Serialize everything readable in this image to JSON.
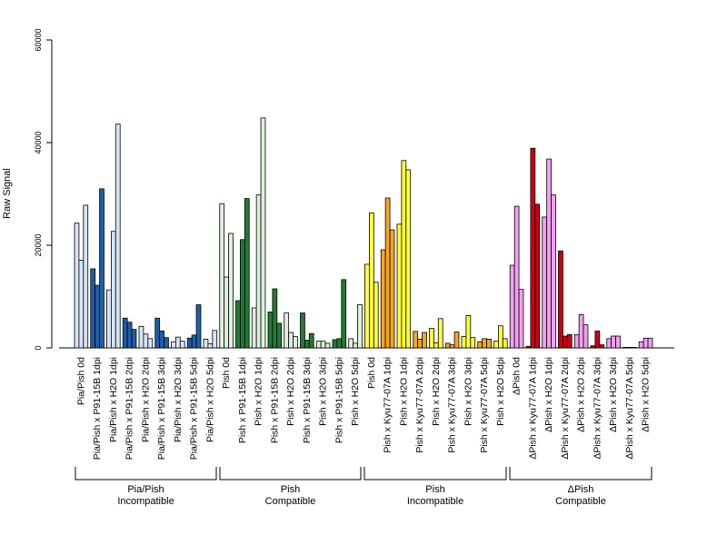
{
  "chart_data": {
    "type": "bar",
    "ylabel": "Raw Signal",
    "ylim": [
      0,
      60000
    ],
    "yticks": [
      0,
      20000,
      40000,
      60000
    ],
    "categories": [
      "Pia/Pish 0d",
      "Pia/Pish x P91-15B 1dpi",
      "Pia/Pish x H2O 1dpi",
      "Pia/Pish x P91-15B 2dpi",
      "Pia/Pish x H2O 2dpi",
      "Pia/Pish x P91-15B 3dpi",
      "Pia/Pish x H2O 3dpi",
      "Pia/Pish x P91-15B 5dpi",
      "Pia/Pish x H2O 5dpi",
      "Pish 0d",
      "Pish x P91-15B 1dpi",
      "Pish x H2O 1dpi",
      "Pish x P91-15B 2dpi",
      "Pish x H2O 2dpi",
      "Pish x P91-15B 3dpi",
      "Pish x H2O 3dpi",
      "Pish x P91-15B 5dpi",
      "Pish x H2O 5dpi",
      "Pish 0d",
      "Pish x Kyu77-07A 1dpi",
      "Pish x H2O 1dpi",
      "Pish x Kyu77-07A 2dpi",
      "Pish x H2O 2dpi",
      "Pish x Kyu77-07A 3dpi",
      "Pish x H2O 3dpi",
      "Pish x Kyu77-07A 5dpi",
      "Pish x H2O 5dpi",
      "ΔPish 0d",
      "ΔPish x Kyu77-07A 1dpi",
      "ΔPish x H2O 1dpi",
      "ΔPish x Kyu77-07A 2dpi",
      "ΔPish x H2O 2dpi",
      "ΔPish x Kyu77-07A 3dpi",
      "ΔPish x H2O 3dpi",
      "ΔPish x Kyu77-07A 5dpi",
      "ΔPish x H2O 5dpi"
    ],
    "replicate_values": [
      [
        24300,
        17100,
        27800
      ],
      [
        15400,
        12200,
        31000
      ],
      [
        11300,
        22700,
        43600
      ],
      [
        5800,
        5000,
        3600
      ],
      [
        4200,
        2700,
        1800
      ],
      [
        5800,
        3300,
        2000
      ],
      [
        1200,
        2100,
        1300
      ],
      [
        1900,
        2500,
        8400
      ],
      [
        1700,
        800,
        3400
      ],
      [
        28100,
        13800,
        22300
      ],
      [
        9200,
        21100,
        29100
      ],
      [
        7800,
        29800,
        44800
      ],
      [
        7000,
        11500,
        4800
      ],
      [
        6800,
        3000,
        2200
      ],
      [
        6800,
        1500,
        2800
      ],
      [
        1300,
        1300,
        900
      ],
      [
        1600,
        1800,
        13300
      ],
      [
        1800,
        900,
        8400
      ],
      [
        16300,
        26300,
        12800
      ],
      [
        19100,
        29200,
        23000
      ],
      [
        24100,
        36500,
        34700
      ],
      [
        3200,
        1700,
        3000
      ],
      [
        3800,
        1000,
        5700
      ],
      [
        900,
        600,
        3100
      ],
      [
        2200,
        6300,
        2000
      ],
      [
        1200,
        1800,
        1700
      ],
      [
        1300,
        4300,
        1800
      ],
      [
        16100,
        27600,
        11400
      ],
      [
        300,
        38900,
        28000
      ],
      [
        25500,
        36800,
        29800
      ],
      [
        18900,
        2300,
        2600
      ],
      [
        2600,
        6500,
        4500
      ],
      [
        400,
        3300,
        600
      ],
      [
        1800,
        2300,
        2300
      ],
      [
        100,
        100,
        100
      ],
      [
        1200,
        1900,
        1900
      ]
    ],
    "group_colors": [
      [
        "#d6e5f5",
        "#1f5fa8"
      ],
      [
        "#def0dc",
        "#237a35"
      ],
      [
        "#ffff3c",
        "#f5a623"
      ],
      [
        "#f2a1ef",
        "#cc0012"
      ]
    ],
    "groups": [
      {
        "line1": "Pia/Pish",
        "line2": "Incompatible"
      },
      {
        "line1": "Pish",
        "line2": "Compatible"
      },
      {
        "line1": "Pish",
        "line2": "Incompatible"
      },
      {
        "line1": "ΔPish",
        "line2": "Compatible"
      }
    ]
  }
}
